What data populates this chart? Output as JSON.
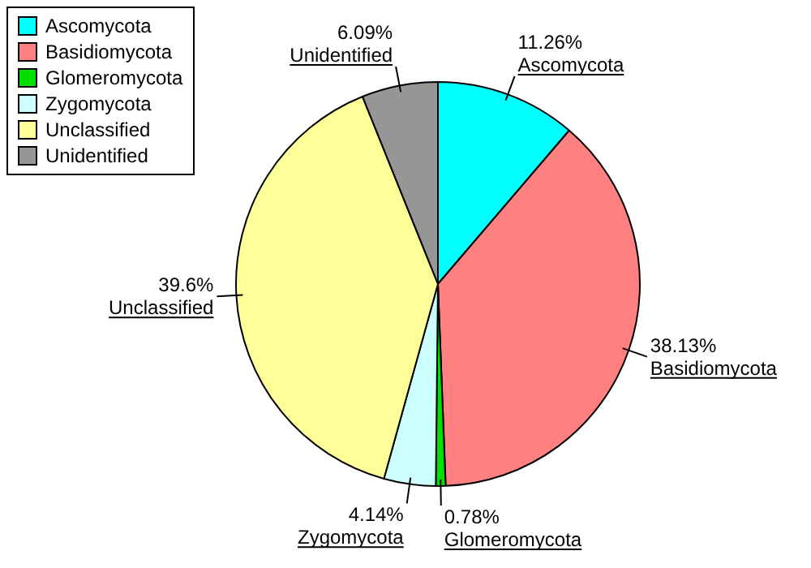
{
  "chart_data": {
    "type": "pie",
    "categories": [
      "Ascomycota",
      "Basidiomycota",
      "Glomeromycota",
      "Zygomycota",
      "Unclassified",
      "Unidentified"
    ],
    "values": [
      11.26,
      38.13,
      0.78,
      4.14,
      39.6,
      6.09
    ],
    "value_labels": [
      "11.26%",
      "38.13%",
      "0.78%",
      "4.14%",
      "39.6%",
      "6.09%"
    ],
    "colors": [
      "#00ffff",
      "#ff8080",
      "#00e000",
      "#ccffff",
      "#ffff99",
      "#969696"
    ],
    "legend": "top left"
  }
}
